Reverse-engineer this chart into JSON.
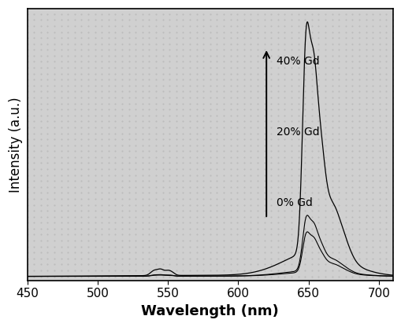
{
  "title": "",
  "xlabel": "Wavelength (nm)",
  "ylabel": "Intensity (a.u.)",
  "xlim": [
    450,
    710
  ],
  "ylim": [
    -0.015,
    1.02
  ],
  "background_color": "#ffffff",
  "plot_bg_color": "#d8d8d8",
  "line_color": "#000000",
  "labels": [
    "0% Gd",
    "20% Gd",
    "40% Gd"
  ],
  "scales": [
    0.175,
    0.24,
    1.0
  ],
  "xlabel_fontsize": 13,
  "ylabel_fontsize": 12,
  "tick_fontsize": 11,
  "xticks": [
    450,
    500,
    550,
    600,
    650,
    700
  ]
}
